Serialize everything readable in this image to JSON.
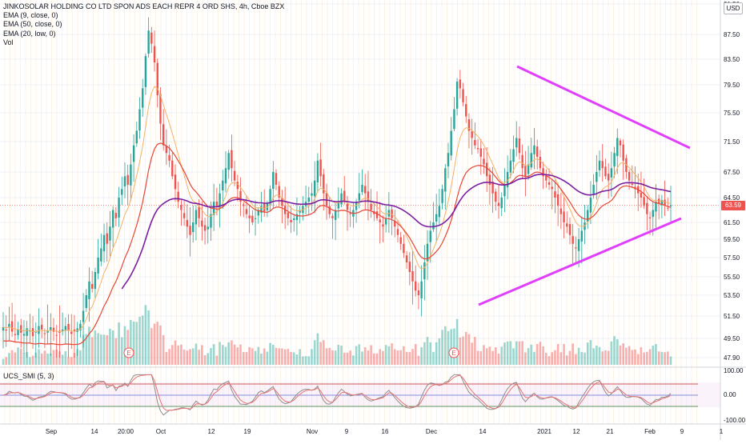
{
  "legend": {
    "title": "JINKOSOLAR HOLDING CO LTD SPON ADS EACH REPR 4 ORD SHS, 4h, Cboe BZX",
    "lines": [
      "EMA (9, close, 0)",
      "EMA (50, close, 0)",
      "EMA (20, low, 0)",
      "Vol"
    ]
  },
  "currency_label": "USD",
  "indicator_label": "UCS_SMI (5, 3)",
  "last_price": "63.59",
  "colors": {
    "up": "#26a69a",
    "down": "#ef5350",
    "ema9": "#f4b266",
    "ema20": "#e84535",
    "ema50": "#7b1fa2",
    "trendline": "#e040fb",
    "smi_main": "#8e8e8e",
    "smi_signal": "#e57373",
    "smi_mid": "#5b6bd8",
    "smi_upper": "#c62828",
    "smi_lower": "#2e7d32"
  },
  "chart_data": {
    "type": "candlestick",
    "price_axis": {
      "ticks": [
        "91.50",
        "87.50",
        "83.50",
        "79.50",
        "75.50",
        "71.50",
        "67.50",
        "64.50",
        "61.50",
        "59.50",
        "57.50",
        "55.50",
        "53.50",
        "51.50",
        "49.50",
        "47.90"
      ]
    },
    "time_axis": {
      "ticks": [
        "Sep",
        "14",
        "20:00",
        "Oct",
        "12",
        "19",
        "Nov",
        "9",
        "16",
        "Dec",
        "14",
        "2021",
        "12",
        "21",
        "Feb",
        "9",
        "1"
      ]
    },
    "earnings_markers": [
      "E",
      "E"
    ],
    "close_series": [
      50.5,
      50.2,
      50.8,
      50.1,
      49.8,
      50.3,
      50.0,
      49.9,
      50.4,
      50.2,
      49.7,
      50.1,
      50.6,
      50.3,
      49.9,
      50.2,
      50.5,
      50.1,
      49.8,
      50.0,
      50.3,
      50.6,
      50.2,
      49.9,
      50.1,
      50.4,
      50.8,
      52.0,
      53.5,
      55.0,
      54.2,
      56.0,
      57.5,
      58.5,
      60.0,
      59.0,
      61.0,
      63.0,
      62.0,
      64.5,
      65.5,
      67.0,
      66.0,
      68.5,
      71.0,
      73.0,
      76.0,
      79.0,
      84.0,
      88.0,
      86.0,
      83.0,
      78.0,
      74.0,
      71.0,
      70.0,
      69.0,
      67.0,
      65.5,
      64.0,
      63.0,
      62.0,
      61.0,
      60.0,
      61.5,
      63.0,
      62.0,
      61.0,
      60.5,
      61.0,
      62.5,
      64.0,
      63.5,
      65.0,
      66.5,
      68.0,
      70.0,
      68.0,
      66.5,
      65.5,
      64.0,
      63.5,
      62.5,
      62.0,
      61.5,
      62.0,
      63.0,
      63.5,
      62.8,
      63.8,
      65.5,
      67.5,
      66.0,
      64.5,
      63.5,
      62.5,
      62.0,
      61.5,
      62.0,
      62.5,
      63.0,
      63.5,
      64.0,
      64.5,
      65.0,
      66.5,
      69.0,
      67.0,
      65.0,
      63.5,
      62.5,
      62.0,
      63.0,
      64.0,
      65.0,
      64.0,
      63.0,
      62.5,
      63.0,
      64.0,
      65.0,
      66.0,
      65.0,
      64.0,
      63.0,
      62.5,
      62.0,
      61.5,
      61.0,
      62.0,
      63.0,
      62.0,
      61.0,
      60.0,
      59.0,
      58.0,
      57.0,
      56.0,
      55.0,
      54.0,
      53.5,
      55.0,
      57.0,
      59.0,
      60.5,
      61.5,
      62.5,
      63.5,
      65.5,
      68.0,
      70.0,
      73.0,
      76.0,
      80.0,
      79.0,
      77.0,
      75.0,
      73.0,
      72.0,
      71.0,
      70.5,
      69.5,
      68.5,
      67.0,
      66.0,
      65.0,
      64.0,
      63.5,
      64.5,
      66.0,
      67.5,
      69.0,
      70.5,
      72.0,
      70.0,
      68.0,
      67.0,
      68.5,
      70.0,
      71.0,
      69.5,
      68.0,
      67.0,
      66.5,
      66.0,
      65.5,
      64.5,
      63.5,
      62.5,
      61.5,
      61.0,
      60.0,
      59.0,
      58.5,
      59.5,
      60.5,
      61.5,
      63.0,
      64.5,
      66.0,
      67.5,
      69.0,
      68.0,
      67.0,
      66.5,
      68.0,
      70.0,
      72.0,
      71.0,
      69.0,
      67.5,
      66.5,
      66.0,
      65.5,
      65.0,
      64.5,
      63.5,
      62.5,
      62.0,
      63.0,
      64.0,
      63.8,
      64.2,
      63.6,
      63.2,
      63.59
    ]
  }
}
